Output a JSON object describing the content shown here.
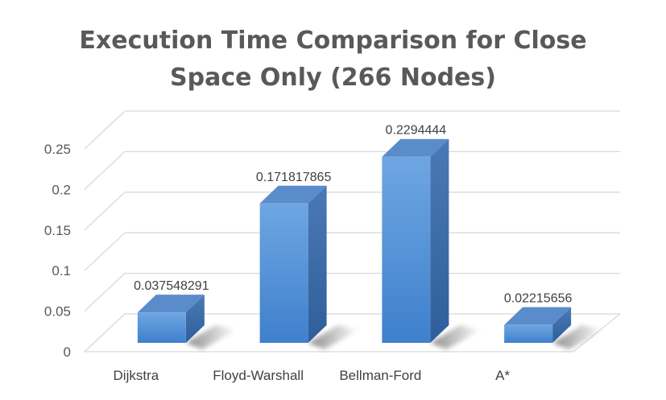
{
  "chart_data": {
    "type": "bar",
    "title_lines": [
      "Execution Time Comparison for Close",
      "Space Only (266 Nodes)"
    ],
    "categories": [
      "Dijkstra",
      "Floyd-Warshall",
      "Bellman-Ford",
      "A*"
    ],
    "values": [
      0.037548291,
      0.171817865,
      0.2294444,
      0.02215656
    ],
    "data_labels": [
      "0.037548291",
      "0.171817865",
      "0.2294444",
      "0.02215656"
    ],
    "y_ticks": [
      "0",
      "0.05",
      "0.1",
      "0.15",
      "0.2",
      "0.25"
    ],
    "ylim": [
      0,
      0.25
    ],
    "grid": true,
    "style": "3d-column",
    "bar_color": "#4f8fd6"
  }
}
